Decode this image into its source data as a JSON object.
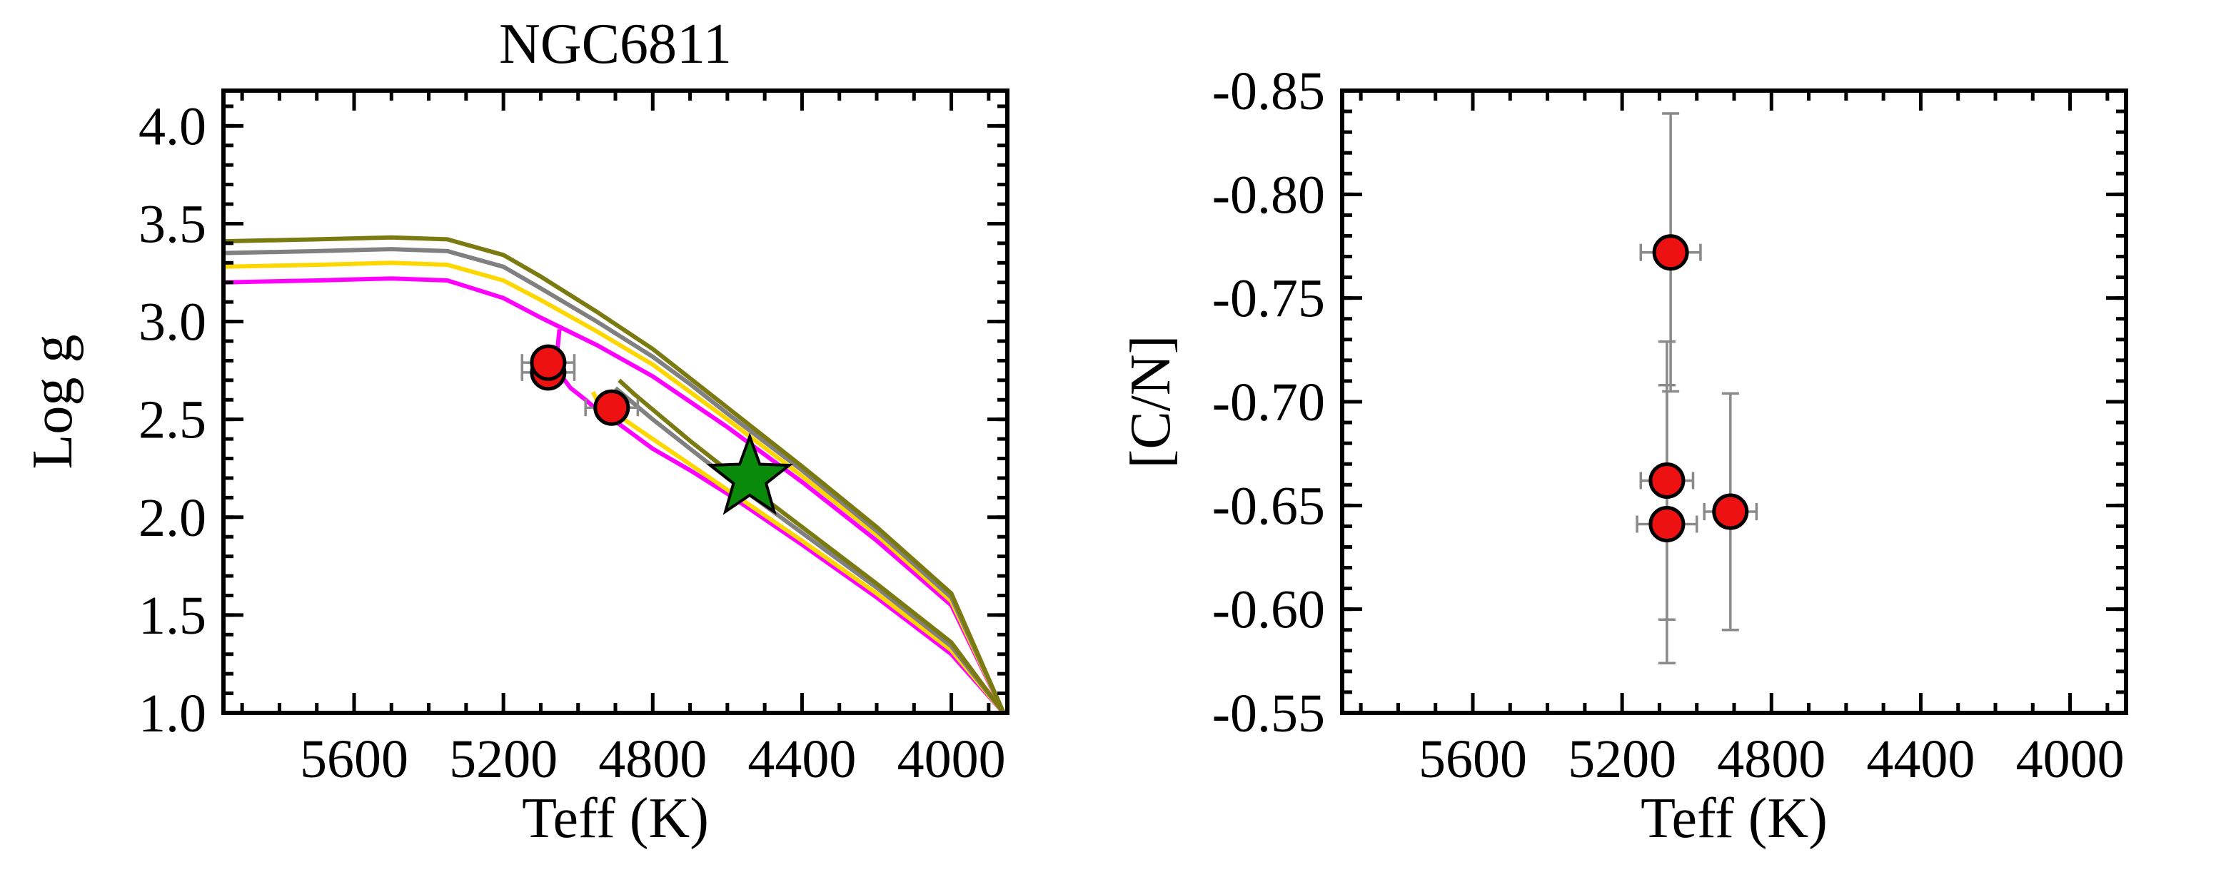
{
  "chart_data": [
    {
      "type": "line",
      "title": "NGC6811",
      "xlabel": "Teff (K)",
      "ylabel": "Log g",
      "xlim": [
        5950,
        3850
      ],
      "ylim": [
        4.18,
        1.0
      ],
      "x_ticks": [
        5600,
        5200,
        4800,
        4400,
        4000
      ],
      "x_tick_labels": [
        "5600",
        "5200",
        "4800",
        "4400",
        "4000"
      ],
      "y_ticks": [
        1.0,
        1.5,
        2.0,
        2.5,
        3.0,
        3.5,
        4.0
      ],
      "y_tick_labels": [
        "1.0",
        "1.5",
        "2.0",
        "2.5",
        "3.0",
        "3.5",
        "4.0"
      ],
      "series": [
        {
          "color": "#ff00ff",
          "points": [
            [
              5950,
              3.2
            ],
            [
              5700,
              3.21
            ],
            [
              5500,
              3.22
            ],
            [
              5350,
              3.21
            ],
            [
              5200,
              3.12
            ],
            [
              5100,
              3.02
            ],
            [
              4950,
              2.88
            ],
            [
              4800,
              2.72
            ],
            [
              4700,
              2.59
            ],
            [
              4600,
              2.46
            ],
            [
              4400,
              2.18
            ],
            [
              4200,
              1.88
            ],
            [
              4000,
              1.55
            ],
            [
              3860,
              1.0
            ]
          ],
          "branch": [
            [
              5050,
              2.96
            ],
            [
              5060,
              2.76
            ],
            [
              5020,
              2.66
            ],
            [
              4980,
              2.6
            ],
            [
              4950,
              2.55
            ],
            [
              4900,
              2.49
            ],
            [
              4800,
              2.35
            ],
            [
              4700,
              2.24
            ],
            [
              4600,
              2.12
            ],
            [
              4400,
              1.86
            ],
            [
              4200,
              1.59
            ],
            [
              4000,
              1.3
            ],
            [
              3860,
              1.0
            ]
          ]
        },
        {
          "color": "#ffd700",
          "points": [
            [
              5950,
              3.28
            ],
            [
              5700,
              3.29
            ],
            [
              5500,
              3.3
            ],
            [
              5350,
              3.29
            ],
            [
              5200,
              3.21
            ],
            [
              5100,
              3.11
            ],
            [
              4950,
              2.95
            ],
            [
              4800,
              2.78
            ],
            [
              4700,
              2.64
            ],
            [
              4600,
              2.5
            ],
            [
              4400,
              2.21
            ],
            [
              4200,
              1.91
            ],
            [
              4000,
              1.57
            ],
            [
              3860,
              1.0
            ]
          ],
          "branch": [
            [
              4960,
              2.64
            ],
            [
              4950,
              2.6
            ],
            [
              4900,
              2.53
            ],
            [
              4800,
              2.4
            ],
            [
              4700,
              2.27
            ],
            [
              4600,
              2.14
            ],
            [
              4400,
              1.88
            ],
            [
              4200,
              1.61
            ],
            [
              4000,
              1.32
            ],
            [
              3860,
              1.0
            ]
          ]
        },
        {
          "color": "#808080",
          "points": [
            [
              5950,
              3.35
            ],
            [
              5700,
              3.36
            ],
            [
              5500,
              3.37
            ],
            [
              5350,
              3.36
            ],
            [
              5200,
              3.28
            ],
            [
              5100,
              3.17
            ],
            [
              4950,
              3.0
            ],
            [
              4800,
              2.82
            ],
            [
              4700,
              2.68
            ],
            [
              4600,
              2.53
            ],
            [
              4400,
              2.24
            ],
            [
              4200,
              1.93
            ],
            [
              4000,
              1.59
            ],
            [
              3860,
              1.0
            ]
          ],
          "branch": [
            [
              4900,
              2.66
            ],
            [
              4850,
              2.58
            ],
            [
              4800,
              2.5
            ],
            [
              4700,
              2.35
            ],
            [
              4600,
              2.2
            ],
            [
              4400,
              1.92
            ],
            [
              4200,
              1.64
            ],
            [
              4000,
              1.34
            ],
            [
              3860,
              1.0
            ]
          ]
        },
        {
          "color": "#7a7a10",
          "points": [
            [
              5950,
              3.41
            ],
            [
              5700,
              3.42
            ],
            [
              5500,
              3.43
            ],
            [
              5350,
              3.42
            ],
            [
              5200,
              3.34
            ],
            [
              5100,
              3.23
            ],
            [
              4950,
              3.05
            ],
            [
              4800,
              2.86
            ],
            [
              4700,
              2.71
            ],
            [
              4600,
              2.56
            ],
            [
              4400,
              2.26
            ],
            [
              4200,
              1.95
            ],
            [
              4000,
              1.61
            ],
            [
              3860,
              1.0
            ]
          ],
          "branch": [
            [
              4890,
              2.7
            ],
            [
              4850,
              2.63
            ],
            [
              4800,
              2.55
            ],
            [
              4700,
              2.39
            ],
            [
              4600,
              2.24
            ],
            [
              4400,
              1.95
            ],
            [
              4200,
              1.66
            ],
            [
              4000,
              1.36
            ],
            [
              3860,
              1.0
            ]
          ]
        }
      ],
      "stars": [
        {
          "teff": 5080,
          "logg": 2.74,
          "teff_err": 70,
          "logg_err": 0.05
        },
        {
          "teff": 5080,
          "logg": 2.79,
          "teff_err": 70,
          "logg_err": 0.05
        },
        {
          "teff": 4910,
          "logg": 2.56,
          "teff_err": 70,
          "logg_err": 0.05
        }
      ],
      "marker_star": {
        "teff": 4540,
        "logg": 2.2,
        "color": "#0a8a0a"
      }
    },
    {
      "type": "scatter",
      "title": "",
      "xlabel": "Teff (K)",
      "ylabel": "[C/N]",
      "xlim": [
        5950,
        3850
      ],
      "ylim": [
        -0.85,
        -0.55
      ],
      "x_ticks": [
        5600,
        5200,
        4800,
        4400,
        4000
      ],
      "x_tick_labels": [
        "5600",
        "5200",
        "4800",
        "4400",
        "4000"
      ],
      "y_ticks": [
        -0.55,
        -0.6,
        -0.65,
        -0.7,
        -0.75,
        -0.8,
        -0.85
      ],
      "y_tick_labels": [
        "-0.55",
        "-0.60",
        "-0.65",
        "-0.70",
        "-0.75",
        "-0.80",
        "-0.85"
      ],
      "points": [
        {
          "teff": 5080,
          "cn": -0.641,
          "teff_err": 80,
          "cn_err": 0.067
        },
        {
          "teff": 5080,
          "cn": -0.662,
          "teff_err": 70,
          "cn_err": 0.067
        },
        {
          "teff": 4910,
          "cn": -0.647,
          "teff_err": 70,
          "cn_err": 0.057
        },
        {
          "teff": 5070,
          "cn": -0.772,
          "teff_err": 80,
          "cn_err": 0.067
        }
      ],
      "point_color": "#ee1111"
    }
  ]
}
